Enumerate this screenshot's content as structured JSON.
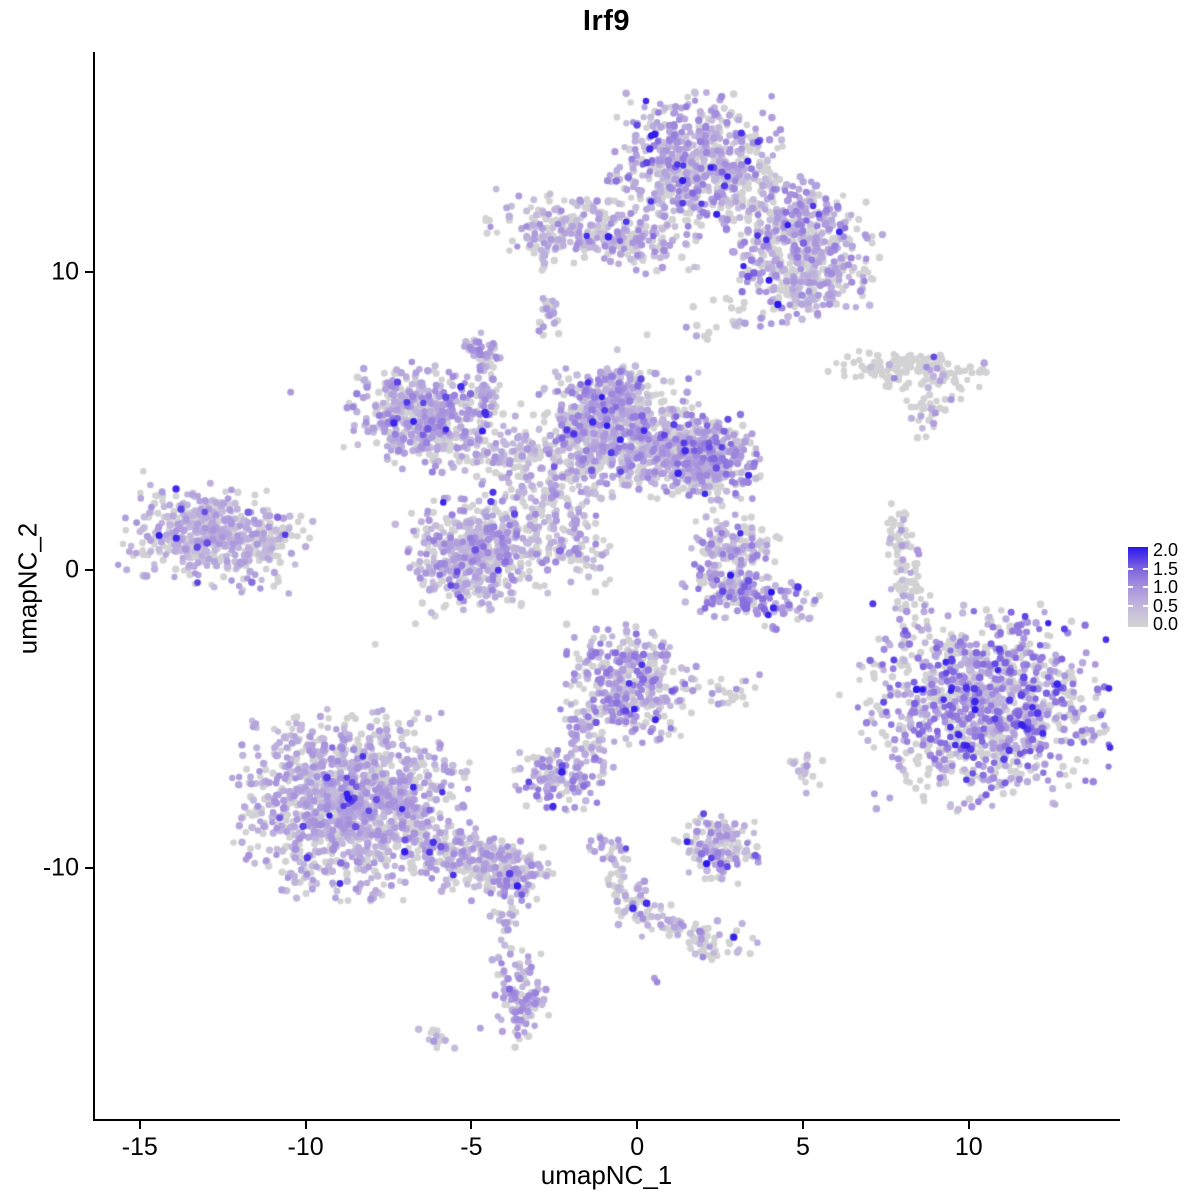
{
  "chart": {
    "title": "Irf9",
    "x_axis": {
      "label": "umapNC_1",
      "tick_labels": [
        "-15",
        "-10",
        "-5",
        "0",
        "5",
        "10"
      ]
    },
    "y_axis": {
      "label": "umapNC_2",
      "tick_labels": [
        "10",
        "0",
        "-10"
      ]
    },
    "legend": {
      "labels": [
        "2.0",
        "1.5",
        "1.0",
        "0.5",
        "0.0"
      ],
      "values": [
        2.0,
        1.5,
        1.0,
        0.5,
        0.0
      ]
    }
  },
  "colors": {
    "background": "#ffffff",
    "axis": "#000000",
    "point_zero_grey": "#d3d3d3",
    "gradient_stops": [
      [
        0.0,
        "#d3d3d3"
      ],
      [
        0.25,
        "#c3b8dc"
      ],
      [
        0.5,
        "#a792dd"
      ],
      [
        0.75,
        "#7a5fdf"
      ],
      [
        1.0,
        "#2a16ee"
      ]
    ]
  },
  "chart_data": {
    "type": "scatter",
    "title": "Irf9",
    "xlabel": "umapNC_1",
    "ylabel": "umapNC_2",
    "xlim": [
      -16.35,
      14.5
    ],
    "ylim": [
      -18.45,
      17.4
    ],
    "x_ticks": [
      -15,
      -10,
      -5,
      0,
      5,
      10
    ],
    "y_ticks": [
      10,
      0,
      -10
    ],
    "legend_min": 0.0,
    "legend_max": 2.0,
    "grid": false,
    "legend_position": "right-middle",
    "point_radius_px": 3.4,
    "n_points_approx": 9600,
    "seed": 42,
    "clusters": [
      {
        "name": "top-main",
        "cx": 1.8,
        "cy": 13.6,
        "sx": 1.15,
        "sy": 1.05,
        "rot": 0,
        "n": 700,
        "frac0": 0.45,
        "e_lo": 0.35,
        "e_hi": 1.2,
        "hi_frac": 0.04
      },
      {
        "name": "top-left-arm",
        "cx": -1.3,
        "cy": 11.3,
        "sx": 1.5,
        "sy": 0.5,
        "rot": -8,
        "n": 330,
        "frac0": 0.5,
        "e_lo": 0.35,
        "e_hi": 1.1,
        "hi_frac": 0.02
      },
      {
        "name": "top-right-arm",
        "cx": 4.9,
        "cy": 11.4,
        "sx": 1.15,
        "sy": 0.8,
        "rot": -25,
        "n": 400,
        "frac0": 0.45,
        "e_lo": 0.4,
        "e_hi": 1.2,
        "hi_frac": 0.03
      },
      {
        "name": "top-lower-right",
        "cx": 4.9,
        "cy": 9.6,
        "sx": 0.95,
        "sy": 0.62,
        "rot": 0,
        "n": 230,
        "frac0": 0.5,
        "e_lo": 0.4,
        "e_hi": 1.1,
        "hi_frac": 0.02
      },
      {
        "name": "top-gap-scatter",
        "cx": 2.5,
        "cy": 8.3,
        "sx": 0.55,
        "sy": 0.4,
        "rot": 0,
        "n": 16,
        "frac0": 0.75,
        "e_lo": 0.4,
        "e_hi": 0.9,
        "hi_frac": 0
      },
      {
        "name": "tiny-below-arm",
        "cx": -2.65,
        "cy": 8.55,
        "sx": 0.2,
        "sy": 0.35,
        "rot": 0,
        "n": 26,
        "frac0": 0.45,
        "e_lo": 0.4,
        "e_hi": 1.0,
        "hi_frac": 0
      },
      {
        "name": "tiny-below-arm2",
        "cx": -2.8,
        "cy": 10.3,
        "sx": 0.15,
        "sy": 0.25,
        "rot": 0,
        "n": 8,
        "frac0": 0.6,
        "e_lo": 0.4,
        "e_hi": 0.8,
        "hi_frac": 0
      },
      {
        "name": "right-ribbon",
        "cx": 8.3,
        "cy": 6.7,
        "sx": 1.1,
        "sy": 0.3,
        "rot": -3,
        "n": 135,
        "frac0": 0.85,
        "e_lo": 0.4,
        "e_hi": 1.1,
        "hi_frac": 0.01
      },
      {
        "name": "right-ribbon-diag",
        "cx": 9.0,
        "cy": 5.7,
        "sx": 0.42,
        "sy": 0.25,
        "rot": 35,
        "n": 26,
        "frac0": 0.6,
        "e_lo": 0.4,
        "e_hi": 1.1,
        "hi_frac": 0
      },
      {
        "name": "right-tiny-dots",
        "cx": 8.8,
        "cy": 4.8,
        "sx": 0.16,
        "sy": 0.3,
        "rot": 0,
        "n": 7,
        "frac0": 0.6,
        "e_lo": 0.4,
        "e_hi": 0.9,
        "hi_frac": 0
      },
      {
        "name": "mid-left-lobe",
        "cx": -6.6,
        "cy": 5.2,
        "sx": 0.95,
        "sy": 0.75,
        "rot": -15,
        "n": 430,
        "frac0": 0.35,
        "e_lo": 0.4,
        "e_hi": 1.2,
        "hi_frac": 0.03
      },
      {
        "name": "mid-left-streak",
        "cx": -4.4,
        "cy": 4.1,
        "sx": 1.25,
        "sy": 0.55,
        "rot": -12,
        "n": 160,
        "frac0": 0.55,
        "e_lo": 0.35,
        "e_hi": 1.0,
        "hi_frac": 0.01
      },
      {
        "name": "mid-spike",
        "cx": -4.55,
        "cy": 6.1,
        "sx": 0.22,
        "sy": 0.8,
        "rot": 0,
        "n": 60,
        "frac0": 0.42,
        "e_lo": 0.4,
        "e_hi": 1.1,
        "hi_frac": 0.02
      },
      {
        "name": "mid-spike-knob",
        "cx": -4.6,
        "cy": 7.35,
        "sx": 0.28,
        "sy": 0.22,
        "rot": 0,
        "n": 40,
        "frac0": 0.3,
        "e_lo": 0.5,
        "e_hi": 1.2,
        "hi_frac": 0.02
      },
      {
        "name": "center-main",
        "cx": -0.7,
        "cy": 4.5,
        "sx": 1.25,
        "sy": 0.95,
        "rot": 0,
        "n": 720,
        "frac0": 0.5,
        "e_lo": 0.35,
        "e_hi": 1.2,
        "hi_frac": 0.03
      },
      {
        "name": "center-bump",
        "cx": -0.9,
        "cy": 5.8,
        "sx": 0.6,
        "sy": 0.5,
        "rot": 0,
        "n": 190,
        "frac0": 0.35,
        "e_lo": 0.45,
        "e_hi": 1.25,
        "hi_frac": 0.03
      },
      {
        "name": "center-right-arm",
        "cx": 1.6,
        "cy": 3.9,
        "sx": 0.85,
        "sy": 0.6,
        "rot": -15,
        "n": 360,
        "frac0": 0.45,
        "e_lo": 0.4,
        "e_hi": 1.2,
        "hi_frac": 0.03
      },
      {
        "name": "center-right-knob",
        "cx": 2.55,
        "cy": 3.6,
        "sx": 0.55,
        "sy": 0.7,
        "rot": 0,
        "n": 160,
        "frac0": 0.35,
        "e_lo": 0.45,
        "e_hi": 1.3,
        "hi_frac": 0.04
      },
      {
        "name": "center-lower-lobe",
        "cx": -4.9,
        "cy": 0.5,
        "sx": 1.0,
        "sy": 0.9,
        "rot": 10,
        "n": 540,
        "frac0": 0.45,
        "e_lo": 0.35,
        "e_hi": 1.2,
        "hi_frac": 0.03
      },
      {
        "name": "center-connect",
        "cx": -1.9,
        "cy": 0.8,
        "sx": 0.5,
        "sy": 0.8,
        "rot": 35,
        "n": 90,
        "frac0": 0.5,
        "e_lo": 0.35,
        "e_hi": 1.1,
        "hi_frac": 0.02
      },
      {
        "name": "center-scatter",
        "cx": -3.2,
        "cy": 2.6,
        "sx": 0.85,
        "sy": 0.85,
        "rot": 0,
        "n": 90,
        "frac0": 0.55,
        "e_lo": 0.35,
        "e_hi": 1.0,
        "hi_frac": 0.01
      },
      {
        "name": "far-left",
        "cx": -12.9,
        "cy": 1.2,
        "sx": 1.15,
        "sy": 0.78,
        "rot": -8,
        "n": 500,
        "frac0": 0.4,
        "e_lo": 0.4,
        "e_hi": 0.95,
        "hi_frac": 0.015
      },
      {
        "name": "far-left-spur",
        "cx": -10.9,
        "cy": 1.1,
        "sx": 0.55,
        "sy": 0.28,
        "rot": 15,
        "n": 45,
        "frac0": 0.55,
        "e_lo": 0.4,
        "e_hi": 0.9,
        "hi_frac": 0
      },
      {
        "name": "rc-hook-upper",
        "cx": 2.9,
        "cy": 0.7,
        "sx": 0.6,
        "sy": 0.6,
        "rot": 0,
        "n": 150,
        "frac0": 0.55,
        "e_lo": 0.4,
        "e_hi": 1.2,
        "hi_frac": 0.03
      },
      {
        "name": "rc-hook-lower",
        "cx": 3.4,
        "cy": -0.85,
        "sx": 1.0,
        "sy": 0.42,
        "rot": -12,
        "n": 180,
        "frac0": 0.3,
        "e_lo": 0.5,
        "e_hi": 1.4,
        "hi_frac": 0.06
      },
      {
        "name": "right-sliver",
        "cx": 8.1,
        "cy": 0.0,
        "sx": 0.26,
        "sy": 1.0,
        "rot": 8,
        "n": 90,
        "frac0": 0.8,
        "e_lo": 0.4,
        "e_hi": 1.0,
        "hi_frac": 0.01
      },
      {
        "name": "right-big",
        "cx": 10.5,
        "cy": -4.6,
        "sx": 1.65,
        "sy": 1.5,
        "rot": 0,
        "n": 1150,
        "frac0": 0.45,
        "e_lo": 0.4,
        "e_hi": 1.5,
        "hi_frac": 0.06
      },
      {
        "name": "cb-main",
        "cx": -0.2,
        "cy": -3.9,
        "sx": 0.9,
        "sy": 0.9,
        "rot": 0,
        "n": 400,
        "frac0": 0.4,
        "e_lo": 0.4,
        "e_hi": 1.3,
        "hi_frac": 0.04
      },
      {
        "name": "cb-connector",
        "cx": -1.55,
        "cy": -5.9,
        "sx": 0.3,
        "sy": 0.7,
        "rot": 20,
        "n": 45,
        "frac0": 0.5,
        "e_lo": 0.4,
        "e_hi": 1.0,
        "hi_frac": 0.01
      },
      {
        "name": "cb-small",
        "cx": -2.35,
        "cy": -6.95,
        "sx": 0.6,
        "sy": 0.5,
        "rot": 0,
        "n": 140,
        "frac0": 0.35,
        "e_lo": 0.45,
        "e_hi": 1.3,
        "hi_frac": 0.04
      },
      {
        "name": "cb-pair",
        "cx": 2.8,
        "cy": -4.1,
        "sx": 0.45,
        "sy": 0.25,
        "rot": 0,
        "n": 25,
        "frac0": 0.6,
        "e_lo": 0.4,
        "e_hi": 1.0,
        "hi_frac": 0.01
      },
      {
        "name": "dots-right-mid",
        "cx": 5.15,
        "cy": -6.55,
        "sx": 0.3,
        "sy": 0.38,
        "rot": 0,
        "n": 18,
        "frac0": 0.55,
        "e_lo": 0.4,
        "e_hi": 1.0,
        "hi_frac": 0
      },
      {
        "name": "bottom-left-main",
        "cx": -8.6,
        "cy": -7.9,
        "sx": 1.55,
        "sy": 1.4,
        "rot": 0,
        "n": 1350,
        "frac0": 0.38,
        "e_lo": 0.4,
        "e_hi": 1.05,
        "hi_frac": 0.025
      },
      {
        "name": "bottom-left-tail",
        "cx": -4.7,
        "cy": -9.8,
        "sx": 0.95,
        "sy": 0.5,
        "rot": -18,
        "n": 270,
        "frac0": 0.45,
        "e_lo": 0.4,
        "e_hi": 1.1,
        "hi_frac": 0.02
      },
      {
        "name": "bottom-left-knot",
        "cx": -3.9,
        "cy": -10.5,
        "sx": 0.35,
        "sy": 0.35,
        "rot": 0,
        "n": 55,
        "frac0": 0.3,
        "e_lo": 0.5,
        "e_hi": 1.2,
        "hi_frac": 0.03
      },
      {
        "name": "below-tail-chain",
        "cx": -3.9,
        "cy": -11.9,
        "sx": 0.28,
        "sy": 0.6,
        "rot": 5,
        "n": 24,
        "frac0": 0.45,
        "e_lo": 0.4,
        "e_hi": 1.0,
        "hi_frac": 0.02
      },
      {
        "name": "bottom-blob",
        "cx": -3.5,
        "cy": -14.4,
        "sx": 0.38,
        "sy": 0.8,
        "rot": 8,
        "n": 115,
        "frac0": 0.3,
        "e_lo": 0.45,
        "e_hi": 1.2,
        "hi_frac": 0.03
      },
      {
        "name": "bottom-tiny",
        "cx": -6.05,
        "cy": -15.75,
        "sx": 0.28,
        "sy": 0.16,
        "rot": -30,
        "n": 12,
        "frac0": 0.4,
        "e_lo": 0.4,
        "e_hi": 1.0,
        "hi_frac": 0
      },
      {
        "name": "bottom-mid-cluster",
        "cx": 2.4,
        "cy": -9.3,
        "sx": 0.6,
        "sy": 0.5,
        "rot": -10,
        "n": 150,
        "frac0": 0.45,
        "e_lo": 0.4,
        "e_hi": 1.2,
        "hi_frac": 0.03
      },
      {
        "name": "chain-top",
        "cx": -0.9,
        "cy": -9.35,
        "sx": 0.28,
        "sy": 0.28,
        "rot": 0,
        "n": 20,
        "frac0": 0.35,
        "e_lo": 0.5,
        "e_hi": 1.1,
        "hi_frac": 0.02
      },
      {
        "name": "chain-mid",
        "cx": -0.45,
        "cy": -10.3,
        "sx": 0.25,
        "sy": 0.45,
        "rot": 15,
        "n": 25,
        "frac0": 0.7,
        "e_lo": 0.4,
        "e_hi": 0.9,
        "hi_frac": 0
      },
      {
        "name": "chain-node",
        "cx": 0.0,
        "cy": -11.2,
        "sx": 0.32,
        "sy": 0.5,
        "rot": 10,
        "n": 45,
        "frac0": 0.5,
        "e_lo": 0.4,
        "e_hi": 1.1,
        "hi_frac": 0.02
      },
      {
        "name": "chain-branch",
        "cx": 0.85,
        "cy": -11.8,
        "sx": 0.5,
        "sy": 0.28,
        "rot": -25,
        "n": 30,
        "frac0": 0.6,
        "e_lo": 0.4,
        "e_hi": 1.0,
        "hi_frac": 0
      },
      {
        "name": "chain-end",
        "cx": 2.1,
        "cy": -12.4,
        "sx": 0.7,
        "sy": 0.33,
        "rot": -15,
        "n": 55,
        "frac0": 0.55,
        "e_lo": 0.4,
        "e_hi": 1.1,
        "hi_frac": 0.02
      }
    ],
    "singles": [
      {
        "x": -10.45,
        "y": 5.97,
        "v": 0.9
      },
      {
        "x": 4.05,
        "y": -0.75,
        "v": 2.0
      },
      {
        "x": 0.6,
        "y": -13.85,
        "v": 1.1
      },
      {
        "x": 0.52,
        "y": -13.72,
        "v": 0.9
      },
      {
        "x": -4.73,
        "y": -15.4,
        "v": 0.8
      },
      {
        "x": -2.9,
        "y": -12.9,
        "v": 0.0
      },
      {
        "x": 5.1,
        "y": -7.5,
        "v": 0.6
      },
      {
        "x": -7.9,
        "y": -2.5,
        "v": 0.0
      },
      {
        "x": 6.1,
        "y": -4.2,
        "v": 0.0
      },
      {
        "x": -0.6,
        "y": 7.4,
        "v": 0.3
      },
      {
        "x": 0.3,
        "y": 7.9,
        "v": 0.0
      }
    ]
  }
}
